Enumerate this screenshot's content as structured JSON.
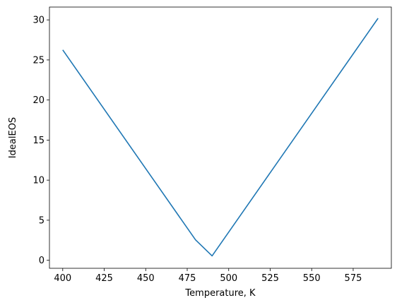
{
  "chart_data": {
    "type": "line",
    "title": "",
    "xlabel": "Temperature, K",
    "ylabel": "IdealEOS",
    "xlim": [
      392,
      598
    ],
    "ylim": [
      -1.0,
      31.6
    ],
    "grid": false,
    "x_ticks": [
      400,
      425,
      450,
      475,
      500,
      525,
      550,
      575
    ],
    "y_ticks": [
      0,
      5,
      10,
      15,
      20,
      25,
      30
    ],
    "series": [
      {
        "color": "#1f77b4",
        "x": [
          400,
          480,
          490,
          590
        ],
        "y": [
          26.25,
          2.55,
          0.55,
          30.2
        ]
      }
    ]
  }
}
